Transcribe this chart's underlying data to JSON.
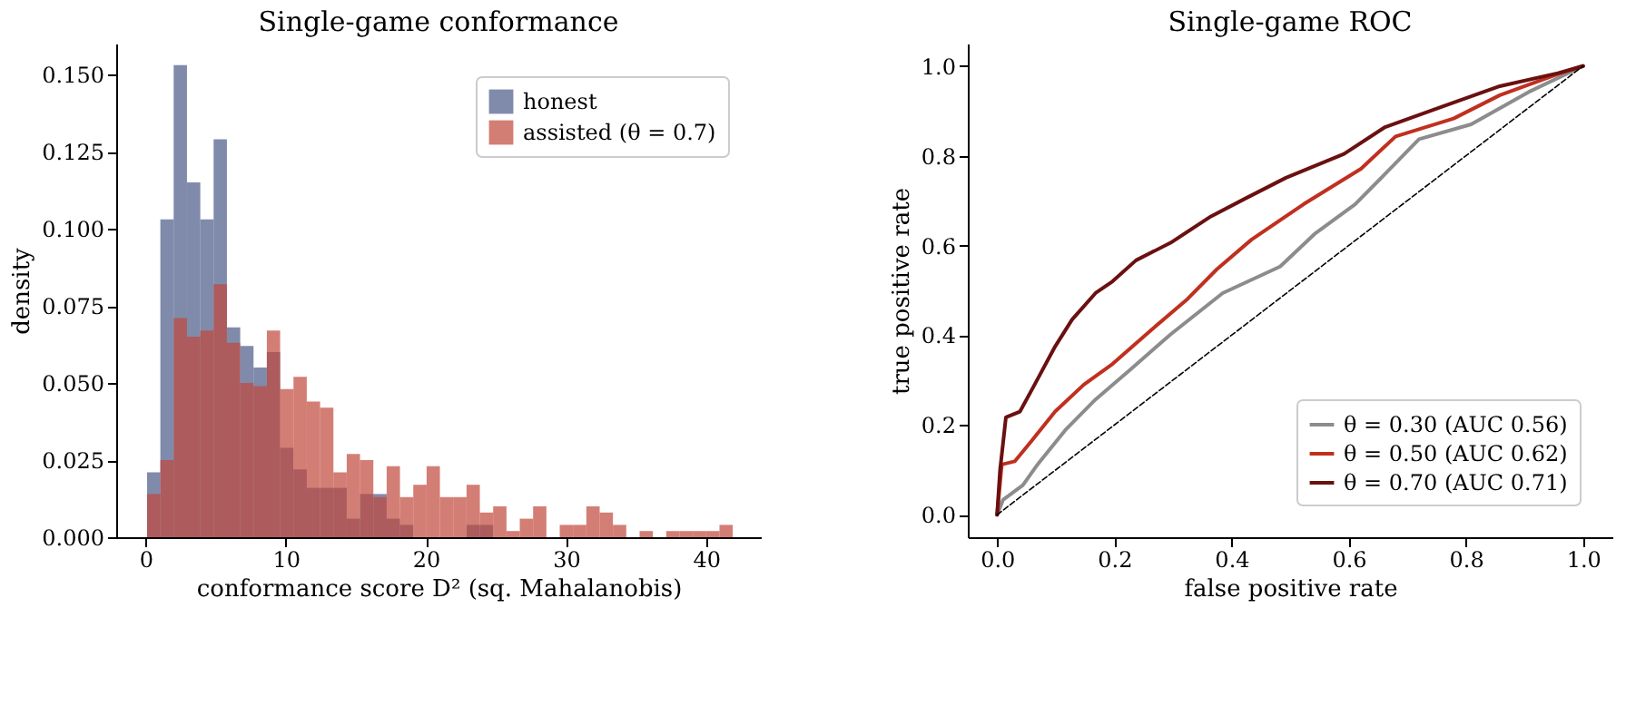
{
  "chart_data": [
    {
      "type": "histogram",
      "title": "Single-game conformance",
      "xlabel": "conformance score D² (sq. Mahalanobis)",
      "ylabel": "density",
      "bins": [
        0.1,
        1.05,
        2.0,
        2.95,
        3.9,
        4.85,
        5.8,
        6.75,
        7.7,
        8.65,
        9.6,
        10.55,
        11.5,
        12.45,
        13.4,
        14.35,
        15.3,
        16.25,
        17.2,
        18.15,
        19.1,
        20.05,
        21.0,
        21.95,
        22.9,
        23.85,
        24.8,
        25.75,
        26.7,
        27.65,
        28.6,
        29.55,
        30.5,
        31.45,
        32.4,
        33.35,
        34.3,
        35.25,
        36.2,
        37.15,
        38.1,
        39.05,
        40.0,
        40.95,
        41.9
      ],
      "series": [
        {
          "name": "honest",
          "color": "#4a5a87",
          "values": [
            0.021,
            0.103,
            0.153,
            0.115,
            0.103,
            0.129,
            0.068,
            0.062,
            0.055,
            0.06,
            0.029,
            0.022,
            0.016,
            0.016,
            0.016,
            0.006,
            0.014,
            0.014,
            0.006,
            0.004,
            0,
            null,
            0,
            null,
            0.004,
            0.004,
            0,
            0,
            null,
            0,
            0,
            0,
            0,
            0,
            0,
            0,
            0,
            0,
            0,
            0,
            0,
            0,
            0,
            0
          ]
        },
        {
          "name": "assisted (θ = 0.7)",
          "color": "#c0473a",
          "values": [
            0.014,
            0.025,
            0.071,
            0.065,
            0.067,
            0.082,
            0.063,
            0.05,
            0.049,
            0.067,
            0.048,
            0.052,
            0.044,
            0.042,
            0.021,
            0.027,
            0.025,
            0.013,
            0.023,
            0.013,
            0.017,
            0.023,
            0.013,
            0.013,
            0.017,
            0.008,
            0.01,
            0.002,
            0.006,
            0.01,
            0,
            0.004,
            0.004,
            0.01,
            0.008,
            0.004,
            0,
            0.002,
            0,
            0.002,
            0.002,
            0.002,
            0.002,
            0.004
          ]
        }
      ],
      "xlim": [
        -2.1,
        43.9
      ],
      "ylim": [
        0,
        0.16
      ],
      "xticks": [
        0,
        10,
        20,
        30,
        40
      ],
      "yticks": [
        {
          "value": 0,
          "label": "0.000"
        },
        {
          "value": 0.025,
          "label": "0.025"
        },
        {
          "value": 0.05,
          "label": "0.050"
        },
        {
          "value": 0.075,
          "label": "0.075"
        },
        {
          "value": 0.1,
          "label": "0.100"
        },
        {
          "value": 0.125,
          "label": "0.125"
        },
        {
          "value": 0.15,
          "label": "0.150"
        }
      ],
      "legend": "top right"
    },
    {
      "type": "line",
      "title": "Single-game ROC",
      "xlabel": "false positive rate",
      "ylabel": "true positive rate",
      "series": [
        {
          "name": "θ = 0.30 (AUC 0.56)",
          "color": "#8c8c8c",
          "x": [
            0,
            0.01,
            0.044,
            0.069,
            0.118,
            0.168,
            0.227,
            0.296,
            0.385,
            0.483,
            0.542,
            0.611,
            0.661,
            0.72,
            0.809,
            0.907,
            1
          ],
          "values": [
            0,
            0.033,
            0.066,
            0.112,
            0.191,
            0.257,
            0.323,
            0.402,
            0.494,
            0.553,
            0.626,
            0.692,
            0.758,
            0.837,
            0.87,
            0.942,
            1
          ]
        },
        {
          "name": "θ = 0.50 (AUC 0.62)",
          "color": "#c0301f",
          "x": [
            0,
            0.008,
            0.03,
            0.059,
            0.099,
            0.148,
            0.197,
            0.266,
            0.325,
            0.375,
            0.434,
            0.523,
            0.621,
            0.68,
            0.779,
            0.858,
            0.957,
            1
          ],
          "values": [
            0,
            0.112,
            0.119,
            0.165,
            0.23,
            0.29,
            0.336,
            0.415,
            0.481,
            0.547,
            0.613,
            0.692,
            0.771,
            0.843,
            0.883,
            0.935,
            0.982,
            1
          ]
        },
        {
          "name": "θ = 0.70 (AUC 0.71)",
          "color": "#6b1010",
          "x": [
            0,
            0.005,
            0.015,
            0.039,
            0.064,
            0.099,
            0.128,
            0.168,
            0.197,
            0.237,
            0.296,
            0.365,
            0.424,
            0.493,
            0.592,
            0.661,
            0.759,
            0.858,
            0.957,
            1
          ],
          "values": [
            0,
            0.099,
            0.217,
            0.23,
            0.29,
            0.375,
            0.435,
            0.494,
            0.52,
            0.567,
            0.606,
            0.665,
            0.705,
            0.751,
            0.804,
            0.863,
            0.909,
            0.955,
            0.984,
            1
          ]
        },
        {
          "color": "#000000",
          "line_style": "dashed",
          "x": [
            0,
            1
          ],
          "values": [
            0,
            1
          ]
        }
      ],
      "xlim": [
        -0.05,
        1.05
      ],
      "ylim": [
        -0.05,
        1.05
      ],
      "xticks": [
        {
          "value": 0,
          "label": "0.0"
        },
        {
          "value": 0.2,
          "label": "0.2"
        },
        {
          "value": 0.4,
          "label": "0.4"
        },
        {
          "value": 0.6,
          "label": "0.6"
        },
        {
          "value": 0.8,
          "label": "0.8"
        },
        {
          "value": 1,
          "label": "1.0"
        }
      ],
      "yticks": [
        {
          "value": 0,
          "label": "0.0"
        },
        {
          "value": 0.2,
          "label": "0.2"
        },
        {
          "value": 0.4,
          "label": "0.4"
        },
        {
          "value": 0.6,
          "label": "0.6"
        },
        {
          "value": 0.8,
          "label": "0.8"
        },
        {
          "value": 1,
          "label": "1.0"
        }
      ],
      "legend": "bottom right",
      "line_style": "solid"
    }
  ]
}
